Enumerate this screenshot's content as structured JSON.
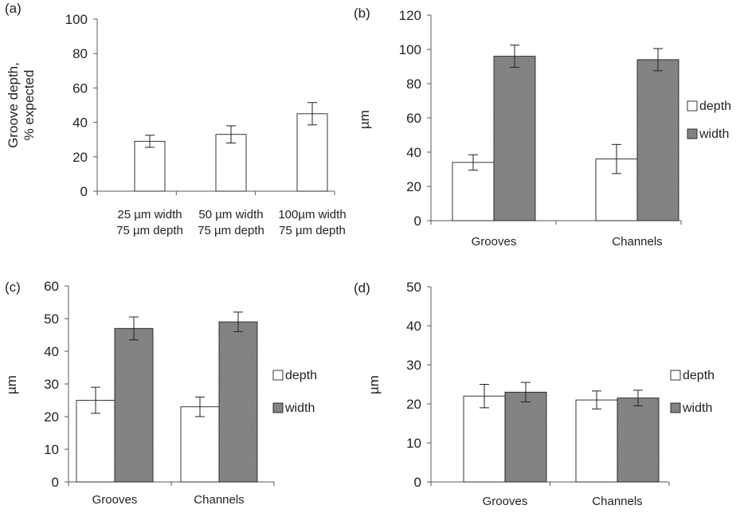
{
  "colors": {
    "depth_fill": "#ffffff",
    "width_fill": "#8e8e8e",
    "axis": "#595959",
    "outline": "#231f20"
  },
  "chart_data": [
    {
      "panel": "(a)",
      "type": "bar",
      "ylabel_lines": [
        "Groove depth,",
        "% expected"
      ],
      "ylim": [
        0,
        100
      ],
      "yticks": [
        0,
        20,
        40,
        60,
        80,
        100
      ],
      "categories": [
        [
          "25 µm width",
          "75 µm depth"
        ],
        [
          "50 µm width",
          "75 µm depth"
        ],
        [
          "100µm width",
          "75 µm depth"
        ]
      ],
      "series": [
        {
          "values": [
            29,
            33,
            45
          ],
          "errors": [
            3.5,
            5,
            6.5
          ]
        }
      ],
      "legend": []
    },
    {
      "panel": "(b)",
      "type": "bar",
      "ylabel": "µm",
      "ylim": [
        0,
        120
      ],
      "yticks": [
        0,
        20,
        40,
        60,
        80,
        100,
        120
      ],
      "categories": [
        "Grooves",
        "Channels"
      ],
      "series": [
        {
          "name": "depth",
          "values": [
            34,
            36
          ],
          "errors": [
            4.5,
            8.5
          ]
        },
        {
          "name": "width",
          "values": [
            96,
            94
          ],
          "errors": [
            6.5,
            6.5
          ]
        }
      ],
      "legend": [
        "depth",
        "width"
      ]
    },
    {
      "panel": "(c)",
      "type": "bar",
      "ylabel": "µm",
      "ylim": [
        0,
        60
      ],
      "yticks": [
        0,
        10,
        20,
        30,
        40,
        50,
        60
      ],
      "categories": [
        "Grooves",
        "Channels"
      ],
      "series": [
        {
          "name": "depth",
          "values": [
            25,
            23
          ],
          "errors": [
            4,
            3
          ]
        },
        {
          "name": "width",
          "values": [
            47,
            49
          ],
          "errors": [
            3.5,
            3
          ]
        }
      ],
      "legend": [
        "depth",
        "width"
      ]
    },
    {
      "panel": "(d)",
      "type": "bar",
      "ylabel": "µm",
      "ylim": [
        0,
        50
      ],
      "yticks": [
        0,
        10,
        20,
        30,
        40,
        50
      ],
      "categories": [
        "Grooves",
        "Channels"
      ],
      "series": [
        {
          "name": "depth",
          "values": [
            22,
            21
          ],
          "errors": [
            3,
            2.3
          ]
        },
        {
          "name": "width",
          "values": [
            23,
            21.5
          ],
          "errors": [
            2.5,
            2
          ]
        }
      ],
      "legend": [
        "depth",
        "width"
      ]
    }
  ]
}
